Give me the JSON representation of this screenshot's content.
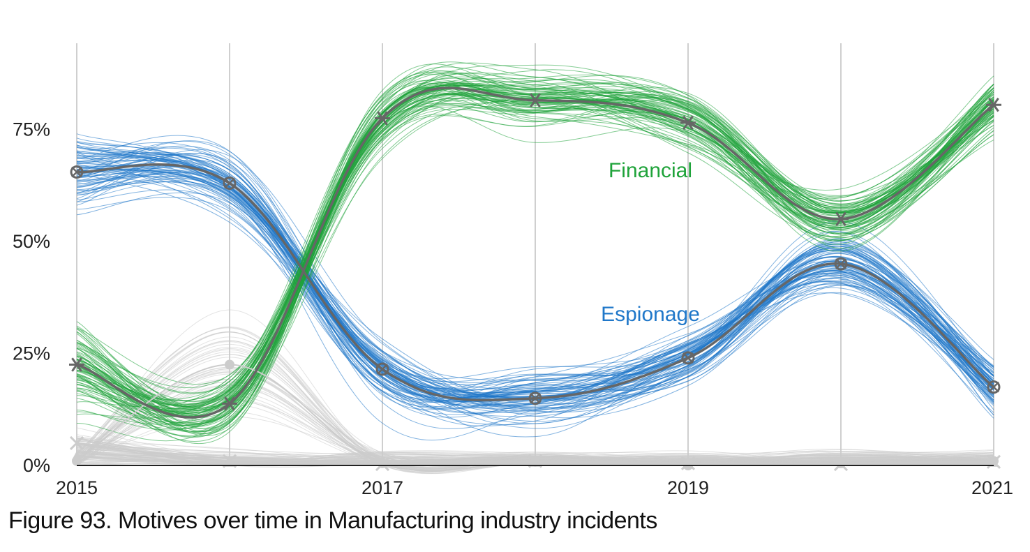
{
  "caption": "Figure 93. Motives over time in Manufacturing industry incidents",
  "chart_data": {
    "type": "line",
    "x": [
      2015,
      2016,
      2017,
      2018,
      2019,
      2020,
      2021
    ],
    "x_tick_labels": [
      "2015",
      "",
      "2017",
      "",
      "2019",
      "",
      "2021"
    ],
    "y_tick_values": [
      0,
      25,
      50,
      75
    ],
    "y_tick_labels": [
      "0%",
      "25%",
      "50%",
      "75%"
    ],
    "ylim": [
      0,
      95
    ],
    "grid": "vertical",
    "series": [
      {
        "name": "Financial",
        "color": "#1fa33a",
        "median_color": "#666666",
        "marker": "asterisk",
        "values": [
          22.5,
          13.8,
          77.5,
          81.5,
          76.5,
          55.0,
          80.5
        ]
      },
      {
        "name": "Espionage",
        "color": "#1f77c9",
        "median_color": "#666666",
        "marker": "boxed-x",
        "values": [
          65.5,
          63.0,
          21.5,
          15.0,
          24.0,
          45.0,
          17.5
        ]
      },
      {
        "color": "#cccccc",
        "median_color": "#cccccc",
        "marker": "dot",
        "values": [
          1.0,
          22.5,
          0.5,
          0.8,
          0.0,
          0.5,
          1.0
        ]
      },
      {
        "color": "#cccccc",
        "median_color": "#cccccc",
        "marker": "x",
        "values": [
          5.0,
          1.0,
          0.3,
          1.0,
          0.5,
          0.3,
          0.8
        ]
      },
      {
        "color": "#cccccc",
        "median_color": "#cccccc",
        "marker": "triangle",
        "values": [
          2.0,
          0.5,
          1.0,
          0.5,
          0.5,
          0.2,
          0.5
        ]
      }
    ]
  }
}
